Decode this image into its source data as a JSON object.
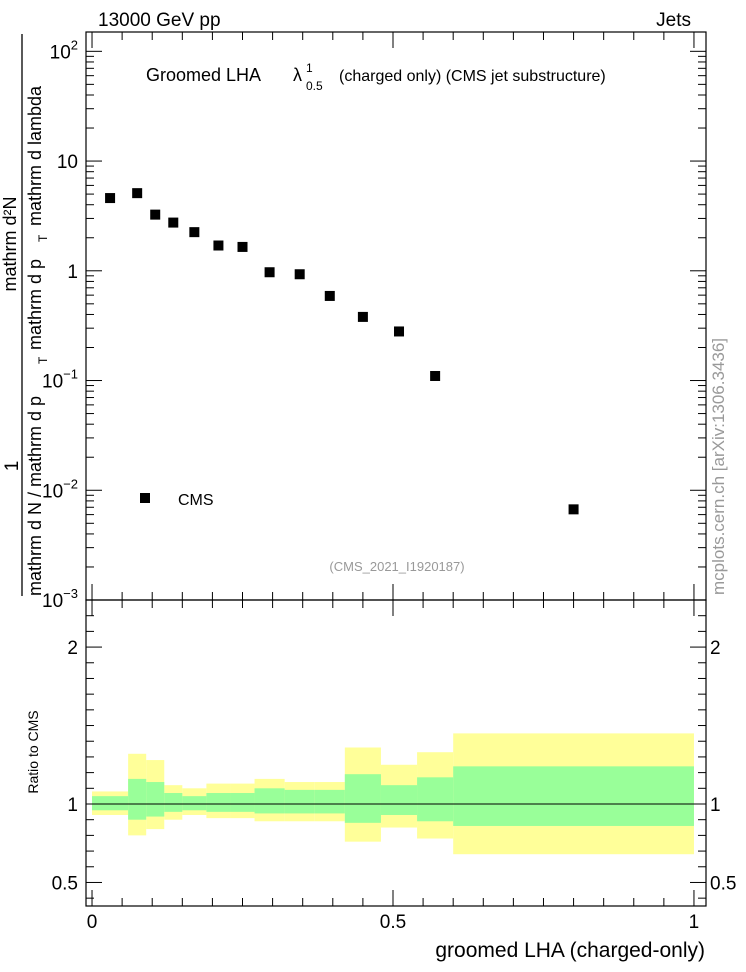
{
  "header": {
    "left": "13000 GeV pp",
    "right": "Jets"
  },
  "watermark": "mcplots.cern.ch [arXiv:1306.3436]",
  "chart_data": [
    {
      "type": "scatter",
      "title_main": "Groomed LHA",
      "title_symbol": "λ",
      "title_sup": "1",
      "title_sub": "0.5",
      "title_rest": "(charged only) (CMS jet substructure)",
      "analysis_id": "(CMS_2021_I1920187)",
      "ylabel_num": "1",
      "ylabel_frac_left": "mathrm d N / mathrm d p",
      "ylabel_frac_left_sub": "T",
      "ylabel_frac_right": "mathrm d",
      "ylabel_d2n": "mathrm d²N",
      "ylabel_den": "mathrm d p",
      "ylabel_den_sub": "T",
      "ylabel_den_rest": "mathrm d lambda",
      "yscale": "log",
      "ylim": [
        0.001,
        150
      ],
      "xlim": [
        -0.01,
        1.02
      ],
      "y_ticks": [
        {
          "v": 100,
          "base": "10",
          "exp": "2"
        },
        {
          "v": 10,
          "base": "10",
          "exp": ""
        },
        {
          "v": 1,
          "base": "1",
          "exp": ""
        },
        {
          "v": 0.1,
          "base": "10",
          "exp": "−1"
        },
        {
          "v": 0.01,
          "base": "10",
          "exp": "−2"
        },
        {
          "v": 0.001,
          "base": "10",
          "exp": "−3"
        }
      ],
      "legend": {
        "label": "CMS",
        "placement": "lower-left"
      },
      "series": [
        {
          "name": "CMS",
          "x": [
            0.03,
            0.075,
            0.105,
            0.135,
            0.17,
            0.21,
            0.25,
            0.295,
            0.345,
            0.395,
            0.45,
            0.51,
            0.57,
            0.8
          ],
          "y": [
            4.6,
            5.1,
            3.25,
            2.75,
            2.25,
            1.7,
            1.65,
            0.97,
            0.93,
            0.59,
            0.38,
            0.28,
            0.11,
            0.0067
          ]
        }
      ]
    },
    {
      "type": "area",
      "ylabel": "Ratio to CMS",
      "xlabel": "groomed LHA (charged-only)",
      "xlim": [
        -0.01,
        1.02
      ],
      "ylim": [
        0.35,
        2.3
      ],
      "y_ticks": [
        {
          "v": 2,
          "label": "2"
        },
        {
          "v": 1,
          "label": "1"
        },
        {
          "v": 0.5,
          "label": "0.5"
        }
      ],
      "x_ticks": [
        {
          "v": 0,
          "label": "0"
        },
        {
          "v": 0.5,
          "label": "0.5"
        },
        {
          "v": 1,
          "label": "1"
        }
      ],
      "reference_line": 1,
      "bands": {
        "edges": [
          0,
          0.06,
          0.09,
          0.12,
          0.15,
          0.19,
          0.23,
          0.27,
          0.32,
          0.37,
          0.42,
          0.48,
          0.54,
          0.6,
          1.0
        ],
        "outer_low": [
          0.93,
          0.8,
          0.84,
          0.9,
          0.93,
          0.91,
          0.91,
          0.89,
          0.89,
          0.89,
          0.76,
          0.85,
          0.78,
          0.68
        ],
        "outer_high": [
          1.08,
          1.32,
          1.28,
          1.12,
          1.1,
          1.13,
          1.13,
          1.16,
          1.14,
          1.14,
          1.36,
          1.25,
          1.33,
          1.45
        ],
        "inner_low": [
          0.96,
          0.9,
          0.92,
          0.95,
          0.96,
          0.95,
          0.95,
          0.94,
          0.94,
          0.94,
          0.88,
          0.93,
          0.89,
          0.86
        ],
        "inner_high": [
          1.05,
          1.16,
          1.14,
          1.07,
          1.05,
          1.07,
          1.07,
          1.1,
          1.09,
          1.09,
          1.19,
          1.12,
          1.17,
          1.24
        ],
        "outer_color": "#ffff99",
        "inner_color": "#99ff99"
      }
    }
  ]
}
